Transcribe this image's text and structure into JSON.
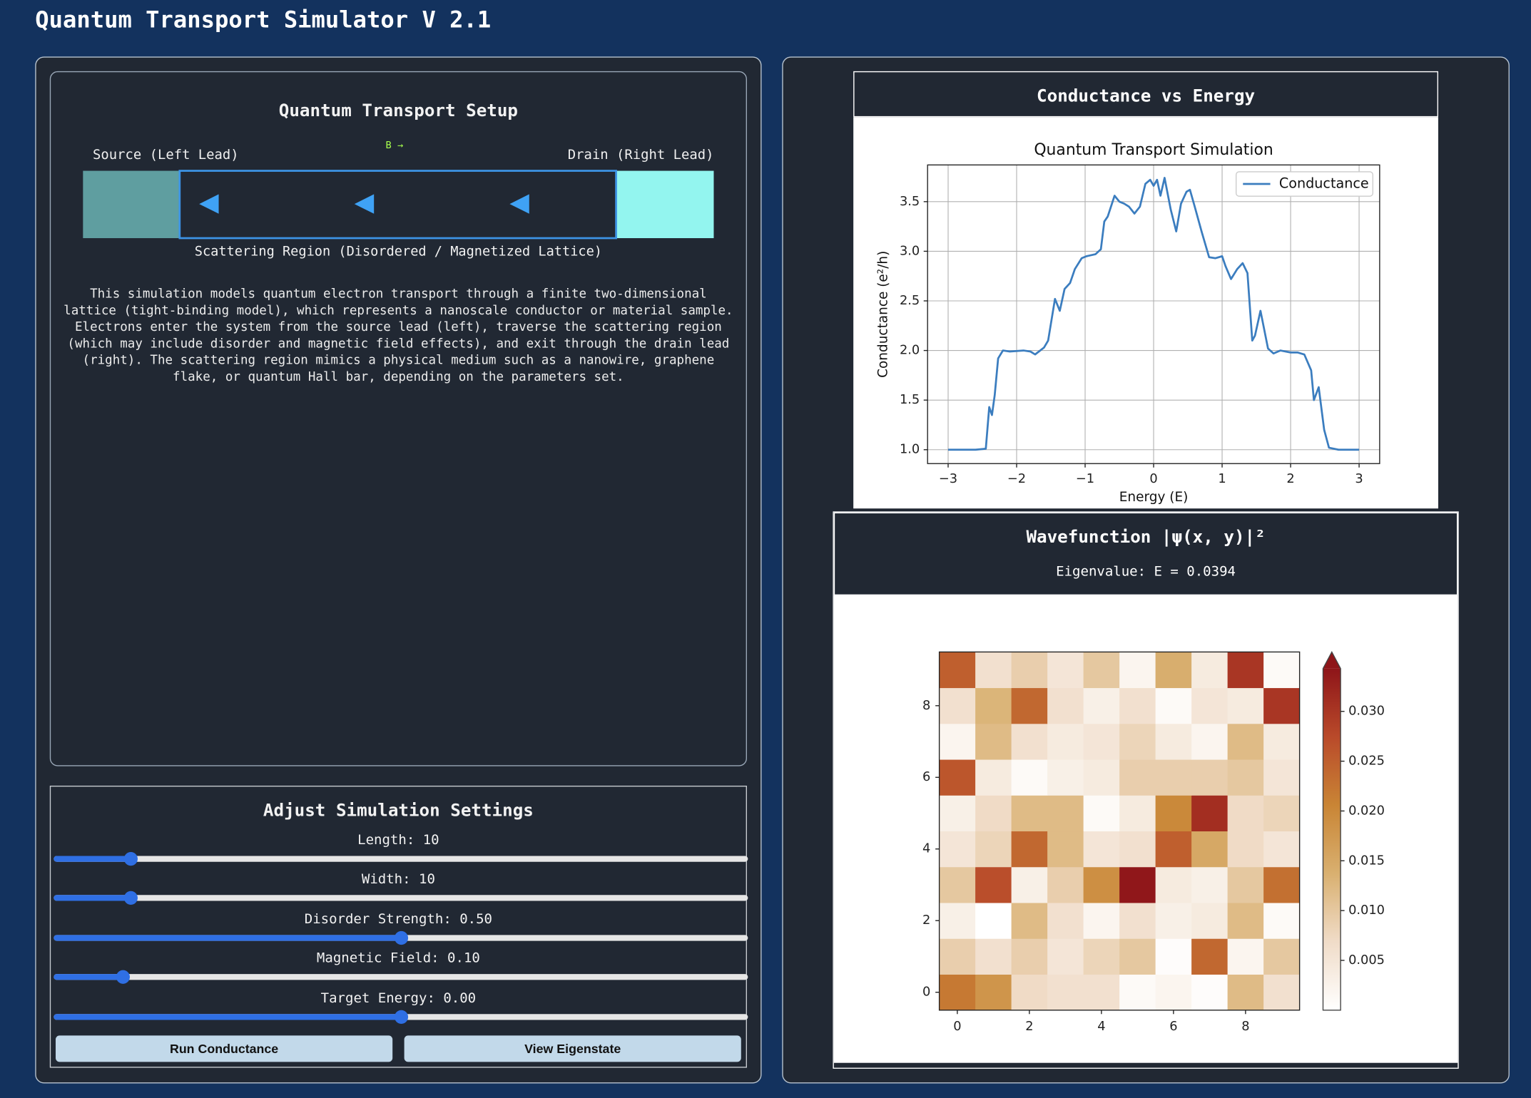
{
  "header": {
    "title": "Quantum Transport Simulator V 2.1"
  },
  "setup": {
    "title": "Quantum Transport Setup",
    "source_label": "Source (Left Lead)",
    "field_label": "B →",
    "drain_label": "Drain (Right Lead)",
    "region_label": "Scattering Region (Disordered / Magnetized Lattice)",
    "description": "This simulation models quantum electron transport through a finite two-dimensional lattice (tight-binding model), which represents a nanoscale conductor or material sample. Electrons enter the system from the source lead (left), traverse the scattering region (which may include disorder and magnetic field effects), and exit through the drain lead (right). The scattering region mimics a physical medium such as a nanowire, graphene flake, or quantum Hall bar, depending on the parameters set."
  },
  "settings": {
    "title": "Adjust Simulation Settings",
    "sliders": [
      {
        "label": "Length: 10",
        "value": 10,
        "range": [
          5,
          50
        ]
      },
      {
        "label": "Width: 10",
        "value": 10,
        "range": [
          5,
          50
        ]
      },
      {
        "label": "Disorder Strength: 0.50",
        "value": 0.5,
        "range": [
          0,
          1
        ]
      },
      {
        "label": "Magnetic Field: 0.10",
        "value": 0.1,
        "range": [
          0,
          1
        ]
      },
      {
        "label": "Target Energy: 0.00",
        "value": 0,
        "range": [
          -3,
          3
        ]
      }
    ],
    "buttons": [
      "Run Conductance",
      "View Eigenstate"
    ]
  },
  "chart_data": [
    {
      "type": "line",
      "panel_title": "Conductance vs Energy",
      "title": "Quantum Transport Simulation",
      "xlabel": "Energy (E)",
      "ylabel": "Conductance (e²/h)",
      "x": [
        -3,
        -2.8,
        -2.6,
        -2.45,
        -2.4,
        -2.36,
        -2.32,
        -2.27,
        -2.2,
        -2.1,
        -1.9,
        -1.8,
        -1.73,
        -1.6,
        -1.54,
        -1.44,
        -1.37,
        -1.3,
        -1.22,
        -1.15,
        -1.05,
        -0.98,
        -0.85,
        -0.77,
        -0.72,
        -0.67,
        -0.57,
        -0.5,
        -0.43,
        -0.36,
        -0.28,
        -0.2,
        -0.12,
        -0.05,
        0,
        0.05,
        0.1,
        0.16,
        0.25,
        0.33,
        0.4,
        0.48,
        0.53,
        0.6,
        0.7,
        0.81,
        0.9,
        1.0,
        1.05,
        1.13,
        1.22,
        1.3,
        1.37,
        1.44,
        1.48,
        1.56,
        1.67,
        1.75,
        1.85,
        2.0,
        2.1,
        2.2,
        2.3,
        2.34,
        2.41,
        2.49,
        2.56,
        2.7,
        3.0
      ],
      "series": [
        {
          "name": "Conductance",
          "color": "#3b7dbf",
          "values": [
            1.0,
            1.0,
            1.0,
            1.01,
            1.43,
            1.35,
            1.55,
            1.92,
            2.0,
            1.99,
            2.0,
            1.99,
            1.96,
            2.03,
            2.1,
            2.52,
            2.4,
            2.62,
            2.68,
            2.82,
            2.93,
            2.95,
            2.97,
            3.02,
            3.3,
            3.35,
            3.56,
            3.5,
            3.48,
            3.45,
            3.38,
            3.45,
            3.68,
            3.72,
            3.66,
            3.72,
            3.56,
            3.74,
            3.42,
            3.2,
            3.48,
            3.6,
            3.62,
            3.45,
            3.2,
            2.94,
            2.93,
            2.95,
            2.85,
            2.72,
            2.82,
            2.88,
            2.78,
            2.1,
            2.15,
            2.4,
            2.02,
            1.97,
            2.0,
            1.98,
            1.98,
            1.96,
            1.8,
            1.5,
            1.63,
            1.2,
            1.02,
            1.0,
            1.0
          ]
        }
      ],
      "xlim": [
        -3.3,
        3.3
      ],
      "ylim": [
        0.86,
        3.87
      ],
      "xticks": [
        {
          "value": -3,
          "label": "−3"
        },
        {
          "value": -2,
          "label": "−2"
        },
        {
          "value": -1,
          "label": "−1"
        },
        0,
        1,
        2,
        3
      ],
      "yticks": [
        {
          "value": 1,
          "label": "1.0"
        },
        1.5,
        {
          "value": 2,
          "label": "2.0"
        },
        2.5,
        {
          "value": 3,
          "label": "3.0"
        },
        3.5
      ],
      "grid": true,
      "legend": "upper right"
    },
    {
      "type": "heatmap",
      "panel_title": "Wavefunction |ψ(x, y)|²",
      "subtitle": "Eigenvalue: E = 0.0394",
      "z": [
        [
          0.022,
          0.018,
          0.007,
          0.006,
          0.006,
          0.001,
          0.002,
          0.0005,
          0.012,
          0.006
        ],
        [
          0.009,
          0.006,
          0.009,
          0.005,
          0.008,
          0.01,
          0.0005,
          0.024,
          0.002,
          0.01
        ],
        [
          0.003,
          0,
          0.012,
          0.006,
          0.002,
          0.006,
          0.003,
          0.004,
          0.012,
          0.001
        ],
        [
          0.01,
          0.027,
          0.003,
          0.009,
          0.019,
          0.034,
          0.004,
          0.003,
          0.01,
          0.023
        ],
        [
          0.005,
          0.008,
          0.024,
          0.012,
          0.005,
          0.006,
          0.025,
          0.015,
          0.007,
          0.005
        ],
        [
          0.003,
          0.007,
          0.012,
          0.012,
          0.001,
          0.004,
          0.02,
          0.031,
          0.007,
          0.008
        ],
        [
          0.026,
          0.004,
          0.001,
          0.003,
          0.004,
          0.009,
          0.009,
          0.009,
          0.01,
          0.005
        ],
        [
          0.002,
          0.012,
          0.006,
          0.004,
          0.005,
          0.008,
          0.004,
          0.002,
          0.012,
          0.004
        ],
        [
          0.006,
          0.013,
          0.024,
          0.006,
          0.003,
          0.006,
          0.001,
          0.005,
          0.004,
          0.03
        ],
        [
          0.025,
          0.006,
          0.009,
          0.005,
          0.01,
          0.002,
          0.014,
          0.004,
          0.03,
          0.001
        ]
      ],
      "xlim": [
        -0.5,
        9.5
      ],
      "ylim": [
        -0.5,
        9.5
      ],
      "xticks": [
        0,
        2,
        4,
        6,
        8
      ],
      "yticks": [
        0,
        2,
        4,
        6,
        8
      ],
      "colorbar": {
        "lim": [
          0,
          0.0343
        ],
        "ticks": [
          0.005,
          {
            "value": 0.01,
            "label": "0.010"
          },
          0.015,
          {
            "value": 0.02,
            "label": "0.020"
          },
          0.025,
          {
            "value": 0.03,
            "label": "0.030"
          }
        ],
        "extend": "max"
      },
      "colormap": [
        "#ffffff",
        "#f0dcc8",
        "#d9b070",
        "#c98535",
        "#b94a2a",
        "#8e1519"
      ]
    }
  ]
}
